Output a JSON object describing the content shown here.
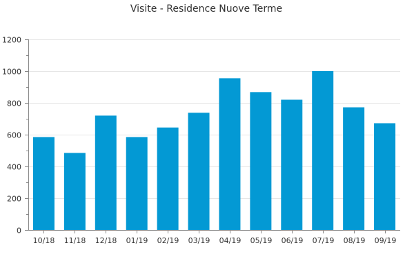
{
  "chart_data": {
    "type": "bar",
    "title": "Visite - Residence Nuove Terme",
    "xlabel": "",
    "ylabel": "",
    "categories": [
      "10/18",
      "11/18",
      "12/18",
      "01/19",
      "02/19",
      "03/19",
      "04/19",
      "05/19",
      "06/19",
      "07/19",
      "08/19",
      "09/19"
    ],
    "values": [
      585,
      485,
      720,
      585,
      645,
      738,
      955,
      868,
      820,
      1000,
      772,
      672
    ],
    "ylim": [
      0,
      1200
    ],
    "yticks": [
      0,
      200,
      400,
      600,
      800,
      1000,
      1200
    ],
    "grid": true,
    "legend": "none",
    "colors": {
      "bar": "#0399d4"
    }
  }
}
